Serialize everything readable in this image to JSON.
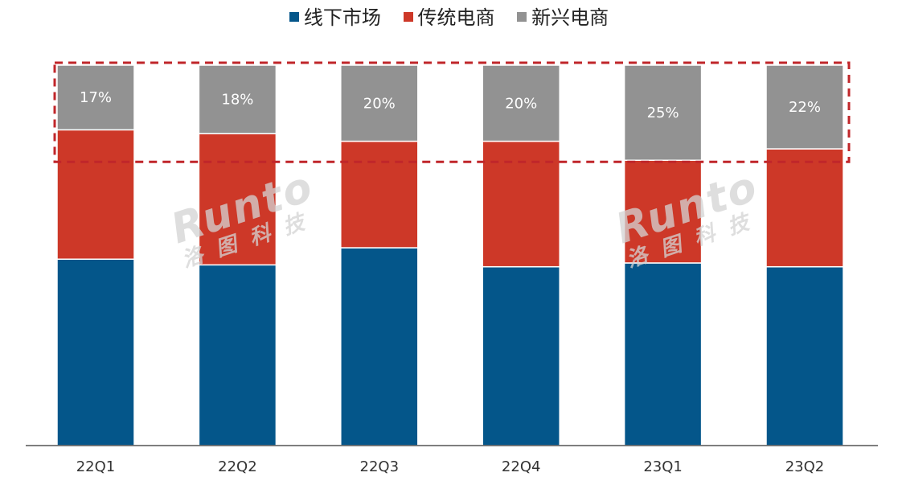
{
  "chart_data": {
    "type": "bar",
    "stacked": true,
    "normalized_percent": true,
    "categories": [
      "22Q1",
      "22Q2",
      "22Q3",
      "22Q4",
      "23Q1",
      "23Q2"
    ],
    "series": [
      {
        "name": "线下市场",
        "color": "#04568a",
        "values": [
          49,
          47.5,
          52,
          47,
          48,
          47
        ]
      },
      {
        "name": "传统电商",
        "color": "#cd3828",
        "values": [
          34,
          34.5,
          28,
          33,
          27,
          31
        ]
      },
      {
        "name": "新兴电商",
        "color": "#929292",
        "values": [
          17,
          18,
          20,
          20,
          25,
          22
        ]
      }
    ],
    "data_labels": [
      "17%",
      "18%",
      "20%",
      "20%",
      "25%",
      "22%"
    ],
    "ylim": [
      0,
      100
    ],
    "grid": false,
    "legend_position": "top-center",
    "highlight_box": {
      "style": "dashed",
      "color": "#c0262a"
    }
  },
  "watermark": {
    "text": "Runto",
    "subtext": "洛图科技"
  }
}
